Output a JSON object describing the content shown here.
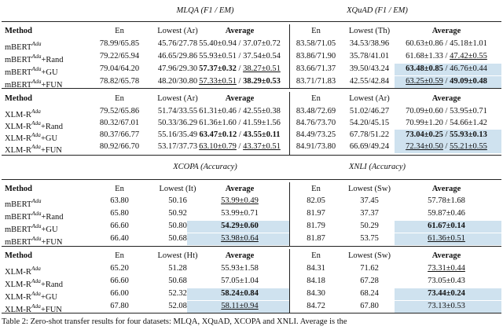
{
  "sections": [
    {
      "left_title": "MLQA (F1 / EM)",
      "right_title": "XQuAD (F1 / EM)",
      "blocks": [
        {
          "header": [
            "Method",
            "En",
            "Lowest (Ar)",
            "Average",
            "En",
            "Lowest (Th)",
            "Average"
          ],
          "rows": [
            {
              "method": {
                "name": "mBERT",
                "sup": "Ada"
              },
              "cells": [
                "78.99/65.85",
                "45.76/27.78",
                {
                  "parts": [
                    {
                      "text": "55.40±0.94 / 37.07±0.72"
                    }
                  ],
                  "highlight": false
                },
                "83.58/71.05",
                "34.53/38.96",
                {
                  "parts": [
                    {
                      "text": "60.63±0.86 / 45.18±1.01"
                    }
                  ],
                  "highlight": false
                }
              ]
            },
            {
              "method": {
                "name": "mBERT",
                "sup": "Ada",
                "suffix": "+Rand"
              },
              "cells": [
                "79.22/65.94",
                "46.65/29.86",
                {
                  "parts": [
                    {
                      "text": "55.93±0.51 / 37.54±0.54"
                    }
                  ],
                  "highlight": false
                },
                "83.86/71.90",
                "35.78/41.01",
                {
                  "parts": [
                    {
                      "text": "61.68±1.33 / "
                    },
                    {
                      "text": "47.42±0.55",
                      "style": "underline"
                    }
                  ],
                  "highlight": false
                }
              ]
            },
            {
              "method": {
                "name": "mBERT",
                "sup": "Ada",
                "suffix": "+GU"
              },
              "cells": [
                "79.04/64.20",
                "47.96/29.30",
                {
                  "parts": [
                    {
                      "text": "57.37±0.32",
                      "style": "bold"
                    },
                    {
                      "text": " / "
                    },
                    {
                      "text": "38.27±0.51",
                      "style": "underline"
                    }
                  ],
                  "highlight": false
                },
                "83.66/71.37",
                "39.50/43.24",
                {
                  "parts": [
                    {
                      "text": "63.48±0.85",
                      "style": "bold"
                    },
                    {
                      "text": " / 46.76±0.44"
                    }
                  ],
                  "highlight": true
                }
              ]
            },
            {
              "method": {
                "name": "mBERT",
                "sup": "Ada",
                "suffix": "+FUN"
              },
              "cells": [
                "78.82/65.78",
                "48.20/30.80",
                {
                  "parts": [
                    {
                      "text": "57.33±0.51",
                      "style": "underline"
                    },
                    {
                      "text": " / "
                    },
                    {
                      "text": "38.29±0.53",
                      "style": "bold"
                    }
                  ],
                  "highlight": false
                },
                "83.71/71.83",
                "42.55/42.84",
                {
                  "parts": [
                    {
                      "text": "63.25±0.59",
                      "style": "underline"
                    },
                    {
                      "text": " / "
                    },
                    {
                      "text": "49.09±0.48",
                      "style": "bold"
                    }
                  ],
                  "highlight": true
                }
              ]
            }
          ]
        },
        {
          "header": [
            "Method",
            "En",
            "Lowest (Ar)",
            "Average",
            "En",
            "Lowest (Ar)",
            "Average"
          ],
          "rows": [
            {
              "method": {
                "name": "XLM-R",
                "sup": "Ada"
              },
              "cells": [
                "79.52/65.86",
                "51.74/33.55",
                {
                  "parts": [
                    {
                      "text": "61.31±0.46 / 42.55±0.38"
                    }
                  ],
                  "highlight": false
                },
                "83.48/72.69",
                "51.02/46.27",
                {
                  "parts": [
                    {
                      "text": "70.09±0.60 / 53.95±0.71"
                    }
                  ],
                  "highlight": false
                }
              ]
            },
            {
              "method": {
                "name": "XLM-R",
                "sup": "Ada",
                "suffix": "+Rand"
              },
              "cells": [
                "80.32/67.01",
                "50.33/36.29",
                {
                  "parts": [
                    {
                      "text": "61.36±1.60 / 41.59±1.56"
                    }
                  ],
                  "highlight": false
                },
                "84.76/73.70",
                "54.20/45.15",
                {
                  "parts": [
                    {
                      "text": "70.99±1.20 / 54.66±1.42"
                    }
                  ],
                  "highlight": false
                }
              ]
            },
            {
              "method": {
                "name": "XLM-R",
                "sup": "Ada",
                "suffix": "+GU"
              },
              "cells": [
                "80.37/66.77",
                "55.16/35.49",
                {
                  "parts": [
                    {
                      "text": "63.47±0.12",
                      "style": "bold"
                    },
                    {
                      "text": " / "
                    },
                    {
                      "text": "43.55±0.11",
                      "style": "bold"
                    }
                  ],
                  "highlight": false
                },
                "84.49/73.25",
                "67.78/51.22",
                {
                  "parts": [
                    {
                      "text": "73.04±0.25",
                      "style": "bold"
                    },
                    {
                      "text": " / "
                    },
                    {
                      "text": "55.93±0.13",
                      "style": "bold"
                    }
                  ],
                  "highlight": true
                }
              ]
            },
            {
              "method": {
                "name": "XLM-R",
                "sup": "Ada",
                "suffix": "+FUN"
              },
              "cells": [
                "80.92/66.70",
                "53.17/37.73",
                {
                  "parts": [
                    {
                      "text": "63.10±0.79",
                      "style": "underline"
                    },
                    {
                      "text": " / "
                    },
                    {
                      "text": "43.37±0.51",
                      "style": "underline"
                    }
                  ],
                  "highlight": false
                },
                "84.91/73.80",
                "66.69/49.24",
                {
                  "parts": [
                    {
                      "text": "72.34±0.50",
                      "style": "underline"
                    },
                    {
                      "text": " / "
                    },
                    {
                      "text": "55.21±0.55",
                      "style": "underline"
                    }
                  ],
                  "highlight": true
                }
              ]
            }
          ]
        }
      ]
    },
    {
      "left_title": "XCOPA (Accuracy)",
      "right_title": "XNLI (Accuracy)",
      "blocks": [
        {
          "header": [
            "Method",
            "En",
            "Lowest (It)",
            "Average",
            "En",
            "Lowest (Sw)",
            "Average"
          ],
          "rows": [
            {
              "method": {
                "name": "mBERT",
                "sup": "Ada"
              },
              "cells": [
                "63.80",
                "50.16",
                {
                  "parts": [
                    {
                      "text": "53.99±0.49",
                      "style": "underline"
                    }
                  ],
                  "highlight": false
                },
                "82.05",
                "37.45",
                {
                  "parts": [
                    {
                      "text": "57.78±1.68"
                    }
                  ],
                  "highlight": false
                }
              ]
            },
            {
              "method": {
                "name": "mBERT",
                "sup": "Ada",
                "suffix": "+Rand"
              },
              "cells": [
                "65.80",
                "50.92",
                {
                  "parts": [
                    {
                      "text": "53.99±0.71"
                    }
                  ],
                  "highlight": false
                },
                "81.97",
                "37.37",
                {
                  "parts": [
                    {
                      "text": "59.87±0.46"
                    }
                  ],
                  "highlight": false
                }
              ]
            },
            {
              "method": {
                "name": "mBERT",
                "sup": "Ada",
                "suffix": "+GU"
              },
              "cells": [
                "66.60",
                "50.80",
                {
                  "parts": [
                    {
                      "text": "54.29±0.60",
                      "style": "bold"
                    }
                  ],
                  "highlight": true
                },
                "81.79",
                "50.29",
                {
                  "parts": [
                    {
                      "text": "61.67±0.14",
                      "style": "bold"
                    }
                  ],
                  "highlight": true
                }
              ]
            },
            {
              "method": {
                "name": "mBERT",
                "sup": "Ada",
                "suffix": "+FUN"
              },
              "cells": [
                "66.40",
                "50.68",
                {
                  "parts": [
                    {
                      "text": "53.98±0.64",
                      "style": "underline"
                    }
                  ],
                  "highlight": true
                },
                "81.87",
                "53.75",
                {
                  "parts": [
                    {
                      "text": "61.36±0.51",
                      "style": "underline"
                    }
                  ],
                  "highlight": true
                }
              ]
            }
          ]
        },
        {
          "header": [
            "Method",
            "En",
            "Lowest (Ht)",
            "Average",
            "En",
            "Lowest (Sw)",
            "Average"
          ],
          "rows": [
            {
              "method": {
                "name": "XLM-R",
                "sup": "Ada"
              },
              "cells": [
                "65.20",
                "51.28",
                {
                  "parts": [
                    {
                      "text": "55.93±1.58"
                    }
                  ],
                  "highlight": false
                },
                "84.31",
                "71.62",
                {
                  "parts": [
                    {
                      "text": "73.31±0.44",
                      "style": "underline"
                    }
                  ],
                  "highlight": false
                }
              ]
            },
            {
              "method": {
                "name": "XLM-R",
                "sup": "Ada",
                "suffix": "+Rand"
              },
              "cells": [
                "66.60",
                "50.68",
                {
                  "parts": [
                    {
                      "text": "57.05±1.04"
                    }
                  ],
                  "highlight": false
                },
                "84.18",
                "67.28",
                {
                  "parts": [
                    {
                      "text": "73.05±0.43"
                    }
                  ],
                  "highlight": false
                }
              ]
            },
            {
              "method": {
                "name": "XLM-R",
                "sup": "Ada",
                "suffix": "+GU"
              },
              "cells": [
                "66.00",
                "52.32",
                {
                  "parts": [
                    {
                      "text": "58.24±0.84",
                      "style": "bold"
                    }
                  ],
                  "highlight": true
                },
                "84.30",
                "68.24",
                {
                  "parts": [
                    {
                      "text": "73.44±0.24",
                      "style": "bold"
                    }
                  ],
                  "highlight": true
                }
              ]
            },
            {
              "method": {
                "name": "XLM-R",
                "sup": "Ada",
                "suffix": "+FUN"
              },
              "cells": [
                "67.80",
                "52.08",
                {
                  "parts": [
                    {
                      "text": "58.11±0.94",
                      "style": "underline"
                    }
                  ],
                  "highlight": true
                },
                "84.72",
                "67.80",
                {
                  "parts": [
                    {
                      "text": "73.13±0.53"
                    }
                  ],
                  "highlight": true
                }
              ]
            }
          ]
        }
      ]
    }
  ],
  "caption": "Table 2: Zero-shot transfer results for four datasets: MLQA, XQuAD, XCOPA and XNLI. Average is the"
}
